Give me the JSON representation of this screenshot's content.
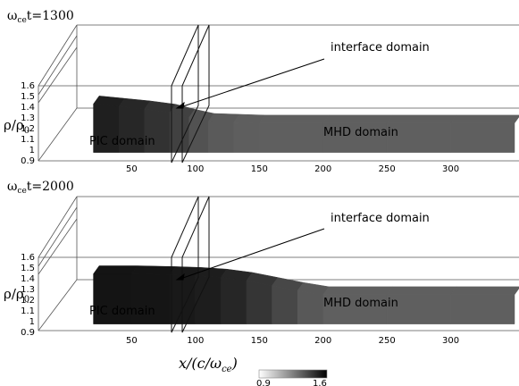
{
  "chart_data": [
    {
      "type": "area",
      "title": "ωcet=1300",
      "title_main": "ω",
      "title_sub": "ce",
      "title_rest": "t=1300",
      "ylabel_main": "ρ/ρ",
      "ylabel_sub": "0",
      "yticks": [
        "1.6",
        "1.5",
        "1.4",
        "1.3",
        "1.2",
        "1.1",
        "1",
        "0.9"
      ],
      "xticks": [
        "50",
        "100",
        "150",
        "200",
        "250",
        "300"
      ],
      "ylim": [
        0.9,
        1.6
      ],
      "xlim": [
        0,
        350
      ],
      "annotations": {
        "interface": "interface domain",
        "pic": "PIC domain",
        "mhd": "MHD domain"
      },
      "x": [
        20,
        40,
        60,
        80,
        95,
        110,
        130,
        150,
        200,
        250,
        300,
        350
      ],
      "values": [
        1.58,
        1.55,
        1.52,
        1.48,
        1.42,
        1.37,
        1.36,
        1.35,
        1.35,
        1.35,
        1.35,
        1.35
      ]
    },
    {
      "type": "area",
      "title": "ωcet=2000",
      "title_main": "ω",
      "title_sub": "ce",
      "title_rest": "t=2000",
      "ylabel_main": "ρ/ρ",
      "ylabel_sub": "0",
      "yticks": [
        "1.6",
        "1.5",
        "1.4",
        "1.3",
        "1.2",
        "1.1",
        "1",
        "0.9"
      ],
      "xticks": [
        "50",
        "100",
        "150",
        "200",
        "250",
        "300"
      ],
      "ylim": [
        0.9,
        1.6
      ],
      "xlim": [
        0,
        350
      ],
      "annotations": {
        "interface": "interface domain",
        "pic": "PIC domain",
        "mhd": "MHD domain"
      },
      "x": [
        20,
        50,
        80,
        100,
        120,
        140,
        160,
        180,
        200,
        250,
        300,
        350
      ],
      "values": [
        1.6,
        1.6,
        1.59,
        1.58,
        1.56,
        1.52,
        1.46,
        1.4,
        1.35,
        1.35,
        1.35,
        1.35
      ]
    }
  ],
  "xlabel_main": "x/(c/ω",
  "xlabel_sub": "ce",
  "xlabel_end": ")",
  "colorbar": {
    "min_label": "0.9",
    "max_label": "1.6",
    "min": 0.9,
    "max": 1.6,
    "low_color": "#ffffff",
    "high_color": "#000000"
  }
}
